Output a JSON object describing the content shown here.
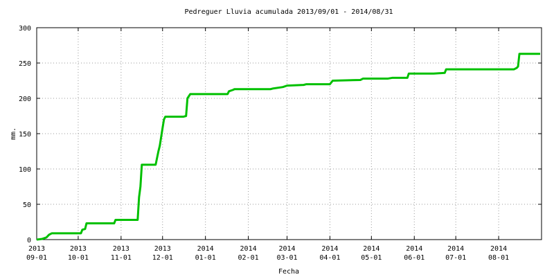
{
  "chart_data": {
    "type": "line",
    "title": "Pedreguer Lluvia acumulada 2013/09/01 - 2014/08/31",
    "y_label": "mm.",
    "x_label": "Fecha",
    "color": "#00c000",
    "grid": true,
    "x": [
      "2013-09-01",
      "2013-09-05",
      "2013-09-08",
      "2013-09-10",
      "2013-09-12",
      "2013-10-03",
      "2013-10-04",
      "2013-10-06",
      "2013-10-07",
      "2013-10-27",
      "2013-10-28",
      "2013-11-13",
      "2013-11-14",
      "2013-11-15",
      "2013-11-16",
      "2013-11-26",
      "2013-11-28",
      "2013-11-29",
      "2013-12-01",
      "2013-12-02",
      "2013-12-03",
      "2013-12-16",
      "2013-12-18",
      "2013-12-19",
      "2013-12-21",
      "2014-01-17",
      "2014-01-18",
      "2014-01-21",
      "2014-01-22",
      "2014-02-17",
      "2014-02-19",
      "2014-02-26",
      "2014-03-01",
      "2014-03-13",
      "2014-03-15",
      "2014-04-01",
      "2014-04-03",
      "2014-04-23",
      "2014-04-25",
      "2014-05-13",
      "2014-05-16",
      "2014-05-27",
      "2014-05-28",
      "2014-06-15",
      "2014-06-23",
      "2014-06-24",
      "2014-08-12",
      "2014-08-14",
      "2014-08-15",
      "2014-08-16",
      "2014-08-31"
    ],
    "values": [
      0,
      1,
      3,
      7,
      9,
      9,
      14,
      15,
      23,
      23,
      28,
      28,
      60,
      75,
      106,
      106,
      125,
      133,
      158,
      170,
      174,
      174,
      175,
      200,
      206,
      206,
      210,
      212,
      213,
      213,
      214,
      216,
      218,
      219,
      220,
      220,
      225,
      226,
      228,
      228,
      229,
      229,
      235,
      235,
      236,
      241,
      241,
      243,
      245,
      263,
      263
    ],
    "xlim": [
      "2013-09-01",
      "2014-09-01"
    ],
    "xticks": [
      {
        "value": "2013-09-01",
        "label": "2013\n09-01"
      },
      {
        "value": "2013-10-01",
        "label": "2013\n10-01"
      },
      {
        "value": "2013-11-01",
        "label": "2013\n11-01"
      },
      {
        "value": "2013-12-01",
        "label": "2013\n12-01"
      },
      {
        "value": "2014-01-01",
        "label": "2014\n01-01"
      },
      {
        "value": "2014-02-01",
        "label": "2014\n02-01"
      },
      {
        "value": "2014-03-01",
        "label": "2014\n03-01"
      },
      {
        "value": "2014-04-01",
        "label": "2014\n04-01"
      },
      {
        "value": "2014-05-01",
        "label": "2014\n05-01"
      },
      {
        "value": "2014-06-01",
        "label": "2014\n06-01"
      },
      {
        "value": "2014-07-01",
        "label": "2014\n07-01"
      },
      {
        "value": "2014-08-01",
        "label": "2014\n08-01"
      }
    ],
    "ylim": [
      0,
      300
    ],
    "yticks": [
      0,
      50,
      100,
      150,
      200,
      250,
      300
    ]
  }
}
